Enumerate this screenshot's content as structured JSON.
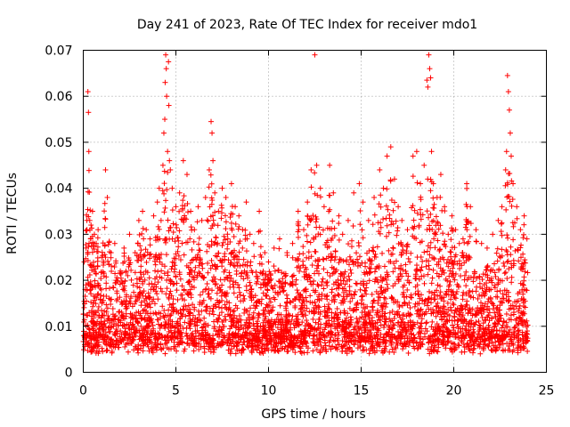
{
  "chart_data": {
    "type": "scatter",
    "title": "Day 241 of 2023, Rate Of TEC Index for receiver mdo1",
    "xlabel": "GPS time / hours",
    "ylabel": "ROTI / TECUs",
    "xlim": [
      0,
      25
    ],
    "ylim": [
      0,
      0.07
    ],
    "grid": true,
    "marker": "+",
    "color": "#ff0000",
    "x_ticks": [
      0,
      5,
      10,
      15,
      20,
      25
    ],
    "x_tick_labels": [
      "0",
      "5",
      "10",
      "15",
      "20",
      "25"
    ],
    "y_ticks": [
      0,
      0.01,
      0.02,
      0.03,
      0.04,
      0.05,
      0.06,
      0.07
    ],
    "y_tick_labels": [
      "0",
      "0.01",
      "0.02",
      "0.03",
      "0.04",
      "0.05",
      "0.06",
      "0.07"
    ],
    "series": [
      {
        "name": "ROTI",
        "points": [
          [
            0.05,
            0.024
          ],
          [
            0.1,
            0.018
          ],
          [
            0.15,
            0.027
          ],
          [
            0.2,
            0.031
          ],
          [
            0.25,
            0.061
          ],
          [
            0.28,
            0.0565
          ],
          [
            0.3,
            0.048
          ],
          [
            0.35,
            0.033
          ],
          [
            0.4,
            0.029
          ],
          [
            0.5,
            0.035
          ],
          [
            0.6,
            0.03
          ],
          [
            0.7,
            0.028
          ],
          [
            0.8,
            0.031
          ],
          [
            1.0,
            0.025
          ],
          [
            1.2,
            0.044
          ],
          [
            1.3,
            0.038
          ],
          [
            1.5,
            0.026
          ],
          [
            1.7,
            0.028
          ],
          [
            2.0,
            0.022
          ],
          [
            2.2,
            0.027
          ],
          [
            2.5,
            0.03
          ],
          [
            2.8,
            0.026
          ],
          [
            3.0,
            0.033
          ],
          [
            3.2,
            0.035
          ],
          [
            3.4,
            0.031
          ],
          [
            3.6,
            0.029
          ],
          [
            3.8,
            0.034
          ],
          [
            4.0,
            0.037
          ],
          [
            4.1,
            0.04
          ],
          [
            4.2,
            0.033
          ],
          [
            4.3,
            0.045
          ],
          [
            4.35,
            0.052
          ],
          [
            4.4,
            0.055
          ],
          [
            4.42,
            0.063
          ],
          [
            4.45,
            0.069
          ],
          [
            4.48,
            0.066
          ],
          [
            4.5,
            0.06
          ],
          [
            4.55,
            0.048
          ],
          [
            4.6,
            0.0675
          ],
          [
            4.62,
            0.058
          ],
          [
            4.65,
            0.046
          ],
          [
            4.7,
            0.044
          ],
          [
            4.8,
            0.04
          ],
          [
            5.0,
            0.036
          ],
          [
            5.2,
            0.039
          ],
          [
            5.4,
            0.046
          ],
          [
            5.6,
            0.043
          ],
          [
            5.8,
            0.035
          ],
          [
            6.0,
            0.031
          ],
          [
            6.2,
            0.036
          ],
          [
            6.4,
            0.033
          ],
          [
            6.6,
            0.038
          ],
          [
            6.8,
            0.044
          ],
          [
            6.9,
            0.0545
          ],
          [
            6.95,
            0.052
          ],
          [
            7.0,
            0.046
          ],
          [
            7.1,
            0.039
          ],
          [
            7.3,
            0.035
          ],
          [
            7.5,
            0.04
          ],
          [
            7.7,
            0.038
          ],
          [
            8.0,
            0.041
          ],
          [
            8.2,
            0.036
          ],
          [
            8.4,
            0.034
          ],
          [
            8.6,
            0.031
          ],
          [
            8.8,
            0.037
          ],
          [
            9.0,
            0.03
          ],
          [
            9.2,
            0.028
          ],
          [
            9.5,
            0.035
          ],
          [
            9.8,
            0.026
          ],
          [
            10.0,
            0.024
          ],
          [
            10.3,
            0.027
          ],
          [
            10.6,
            0.029
          ],
          [
            11.0,
            0.026
          ],
          [
            11.3,
            0.028
          ],
          [
            11.6,
            0.035
          ],
          [
            11.9,
            0.031
          ],
          [
            12.1,
            0.037
          ],
          [
            12.3,
            0.044
          ],
          [
            12.5,
            0.069
          ],
          [
            12.6,
            0.045
          ],
          [
            12.8,
            0.04
          ],
          [
            13.0,
            0.036
          ],
          [
            13.3,
            0.045
          ],
          [
            13.5,
            0.039
          ],
          [
            13.8,
            0.034
          ],
          [
            14.0,
            0.03
          ],
          [
            14.3,
            0.033
          ],
          [
            14.6,
            0.039
          ],
          [
            14.9,
            0.041
          ],
          [
            15.1,
            0.037
          ],
          [
            15.4,
            0.033
          ],
          [
            15.7,
            0.038
          ],
          [
            16.0,
            0.044
          ],
          [
            16.2,
            0.04
          ],
          [
            16.4,
            0.047
          ],
          [
            16.6,
            0.049
          ],
          [
            16.8,
            0.042
          ],
          [
            17.0,
            0.036
          ],
          [
            17.2,
            0.033
          ],
          [
            17.5,
            0.031
          ],
          [
            17.8,
            0.047
          ],
          [
            18.0,
            0.048
          ],
          [
            18.2,
            0.041
          ],
          [
            18.4,
            0.045
          ],
          [
            18.55,
            0.0635
          ],
          [
            18.6,
            0.062
          ],
          [
            18.65,
            0.069
          ],
          [
            18.7,
            0.066
          ],
          [
            18.75,
            0.064
          ],
          [
            18.8,
            0.048
          ],
          [
            18.9,
            0.041
          ],
          [
            19.1,
            0.038
          ],
          [
            19.3,
            0.043
          ],
          [
            19.5,
            0.036
          ],
          [
            19.7,
            0.03
          ],
          [
            19.9,
            0.034
          ],
          [
            20.1,
            0.031
          ],
          [
            20.3,
            0.028
          ],
          [
            20.5,
            0.029
          ],
          [
            20.7,
            0.041
          ],
          [
            20.9,
            0.036
          ],
          [
            21.2,
            0.031
          ],
          [
            21.5,
            0.028
          ],
          [
            21.8,
            0.027
          ],
          [
            22.1,
            0.03
          ],
          [
            22.4,
            0.033
          ],
          [
            22.6,
            0.036
          ],
          [
            22.8,
            0.044
          ],
          [
            22.85,
            0.048
          ],
          [
            22.9,
            0.0645
          ],
          [
            22.95,
            0.061
          ],
          [
            23.0,
            0.057
          ],
          [
            23.05,
            0.052
          ],
          [
            23.1,
            0.047
          ],
          [
            23.2,
            0.041
          ],
          [
            23.4,
            0.036
          ],
          [
            23.6,
            0.031
          ],
          [
            23.8,
            0.034
          ],
          [
            23.95,
            0.029
          ]
        ]
      }
    ]
  }
}
